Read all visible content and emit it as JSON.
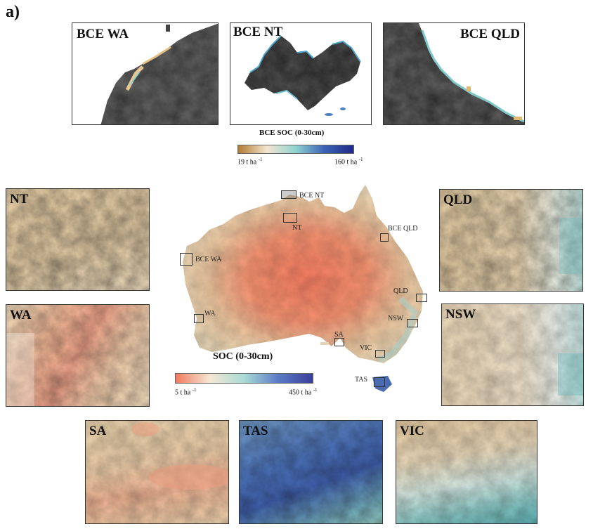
{
  "figure_label": "a)",
  "bce_panels": [
    {
      "label": "BCE WA"
    },
    {
      "label": "BCE NT"
    },
    {
      "label": "BCE QLD"
    }
  ],
  "bce_colorbar": {
    "title": "BCE SOC (0-30cm)",
    "min_label": "19 t ha",
    "max_label": "160 t ha",
    "unit_exp": "-1",
    "colors": [
      "#b07a2e",
      "#f3e6cf",
      "#8fd3cf",
      "#3a62b5",
      "#1f2a86"
    ]
  },
  "soc_colorbar": {
    "title": "SOC (0-30cm)",
    "min_label": "5 t ha",
    "max_label": "450 t ha",
    "unit_exp": "-1",
    "colors": [
      "#f07b5e",
      "#f5e7d4",
      "#a9dcd5",
      "#5a7bc4",
      "#3a3f9a"
    ]
  },
  "main_map": {
    "region_labels": [
      "BCE NT",
      "NT",
      "BCE QLD",
      "BCE WA",
      "QLD",
      "WA",
      "NSW",
      "SA",
      "VIC",
      "TAS"
    ]
  },
  "zoom_panels": [
    {
      "label": "NT"
    },
    {
      "label": "WA"
    },
    {
      "label": "QLD"
    },
    {
      "label": "NSW"
    },
    {
      "label": "SA"
    },
    {
      "label": "TAS"
    },
    {
      "label": "VIC"
    }
  ]
}
